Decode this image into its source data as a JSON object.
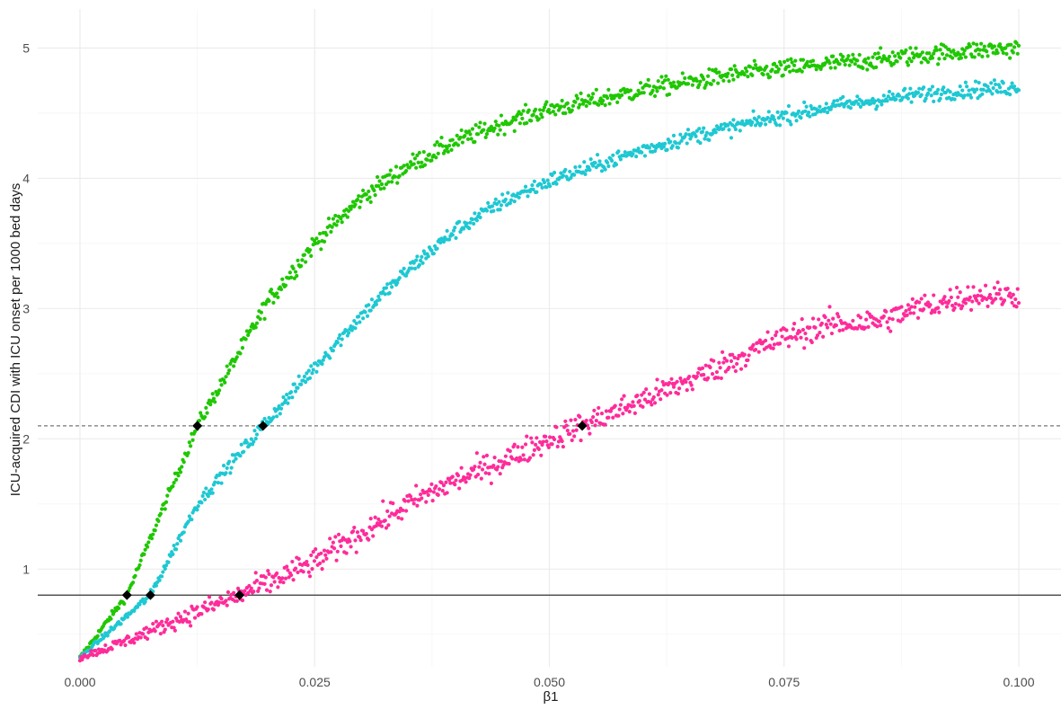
{
  "chart_data": {
    "type": "scatter",
    "title": "",
    "xlabel": "β1",
    "ylabel": "ICU-acquired CDI with ICU onset per 1000 bed days",
    "xlim": [
      -0.0045,
      0.1045
    ],
    "ylim": [
      0.25,
      5.3
    ],
    "x_ticks": [
      0.0,
      0.025,
      0.05,
      0.075,
      0.1
    ],
    "x_tick_labels": [
      "0.000",
      "0.025",
      "0.050",
      "0.075",
      "0.100"
    ],
    "y_ticks": [
      1,
      2,
      3,
      4,
      5
    ],
    "y_tick_labels": [
      "1",
      "2",
      "3",
      "4",
      "5"
    ],
    "grid": true,
    "legend": "none",
    "series": [
      {
        "color": "#1fc700",
        "curve": {
          "x": [
            0.0,
            0.005,
            0.0125,
            0.02,
            0.025,
            0.03,
            0.035,
            0.04,
            0.045,
            0.05,
            0.055,
            0.06,
            0.065,
            0.07,
            0.075,
            0.08,
            0.085,
            0.09,
            0.095,
            0.1
          ],
          "y": [
            0.32,
            0.8,
            2.1,
            3.05,
            3.5,
            3.85,
            4.1,
            4.28,
            4.42,
            4.53,
            4.6,
            4.68,
            4.74,
            4.8,
            4.84,
            4.88,
            4.91,
            4.95,
            4.98,
            5.0
          ]
        },
        "noise": 0.035
      },
      {
        "color": "#1ec8d2",
        "curve": {
          "x": [
            0.0,
            0.0075,
            0.0125,
            0.0195,
            0.025,
            0.03,
            0.035,
            0.04,
            0.045,
            0.05,
            0.055,
            0.06,
            0.065,
            0.07,
            0.075,
            0.08,
            0.085,
            0.09,
            0.095,
            0.1
          ],
          "y": [
            0.32,
            0.8,
            1.5,
            2.1,
            2.55,
            2.95,
            3.3,
            3.6,
            3.82,
            3.98,
            4.1,
            4.22,
            4.32,
            4.4,
            4.48,
            4.55,
            4.6,
            4.65,
            4.68,
            4.7
          ]
        },
        "noise": 0.03
      },
      {
        "color": "#ff2b99",
        "curve": {
          "x": [
            0.0,
            0.005,
            0.01,
            0.017,
            0.025,
            0.03,
            0.035,
            0.04,
            0.045,
            0.05,
            0.0535,
            0.06,
            0.065,
            0.07,
            0.075,
            0.08,
            0.085,
            0.09,
            0.095,
            0.1
          ],
          "y": [
            0.32,
            0.45,
            0.6,
            0.8,
            1.05,
            1.28,
            1.5,
            1.68,
            1.83,
            2.0,
            2.1,
            2.3,
            2.45,
            2.62,
            2.78,
            2.88,
            2.9,
            3.02,
            3.1,
            3.1
          ]
        },
        "noise": 0.05
      }
    ],
    "threshold_lines": [
      {
        "y": 2.1,
        "style": "dashed",
        "color": "#777777"
      },
      {
        "y": 0.8,
        "style": "solid",
        "color": "#333333"
      }
    ],
    "intersection_points": [
      {
        "x": 0.005,
        "y": 0.8
      },
      {
        "x": 0.0075,
        "y": 0.8
      },
      {
        "x": 0.017,
        "y": 0.8
      },
      {
        "x": 0.0125,
        "y": 2.1
      },
      {
        "x": 0.0195,
        "y": 2.1
      },
      {
        "x": 0.0535,
        "y": 2.1
      }
    ]
  }
}
